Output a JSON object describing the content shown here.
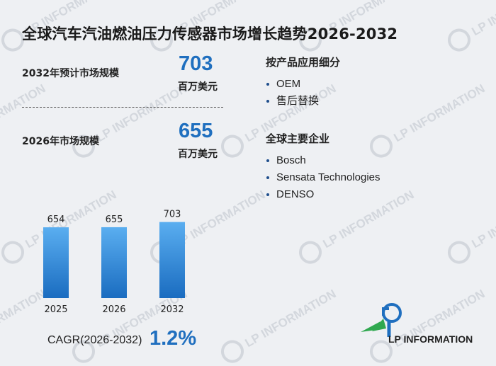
{
  "title": "全球汽车汽油燃油压力传感器市场增长趋势2026-2032",
  "metrics": [
    {
      "label": "2032年预计市场规模",
      "value": "703",
      "unit": "百万美元"
    },
    {
      "label": "2026年市场规模",
      "value": "655",
      "unit": "百万美元"
    }
  ],
  "segments": {
    "heading": "按产品应用细分",
    "items": [
      "OEM",
      "售后替换"
    ]
  },
  "companies": {
    "heading": "全球主要企业",
    "items": [
      "Bosch",
      "Sensata Technologies",
      "DENSO"
    ]
  },
  "cagr": {
    "label": "CAGR(2026-2032)",
    "value": "1.2%"
  },
  "logo": {
    "text": "LP INFORMATION",
    "watermark": "LP INFORMATION"
  },
  "colors": {
    "accent": "#1f6fbf",
    "bar_top": "#5aaef0",
    "bar_bottom": "#1a6cc0"
  },
  "chart_data": {
    "type": "bar",
    "categories": [
      "2025",
      "2026",
      "2032"
    ],
    "values": [
      654,
      655,
      703
    ],
    "data_labels": [
      "654",
      "655",
      "703"
    ],
    "ylim": [
      0,
      720
    ],
    "grid": false,
    "legend": "none"
  }
}
